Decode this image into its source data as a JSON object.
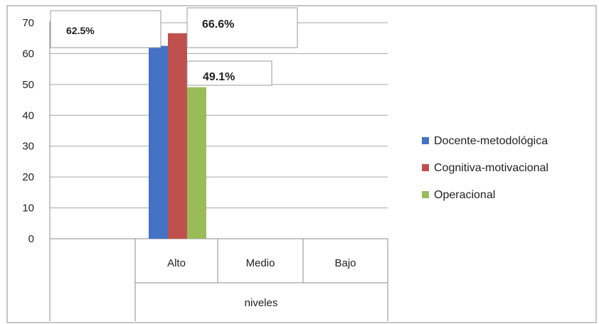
{
  "chart_data": {
    "type": "bar",
    "title": "",
    "xlabel": "niveles",
    "ylabel": "",
    "ylim": [
      0,
      70
    ],
    "yticks": [
      0,
      10,
      20,
      30,
      40,
      50,
      60,
      70
    ],
    "grid": true,
    "legend_position": "right",
    "categories": [
      "Alto",
      "Medio",
      "Bajo"
    ],
    "series": [
      {
        "name": "Docente-metodológica",
        "color": "#4472C4",
        "values": [
          62.5,
          null,
          null
        ]
      },
      {
        "name": "Cognitiva-motivacional",
        "color": "#C0504D",
        "values": [
          66.6,
          null,
          null
        ]
      },
      {
        "name": "Operacional",
        "color": "#9BBB59",
        "values": [
          49.1,
          null,
          null
        ]
      }
    ],
    "annotations": [
      "62.5%",
      "66.6%",
      "49.1%"
    ]
  }
}
